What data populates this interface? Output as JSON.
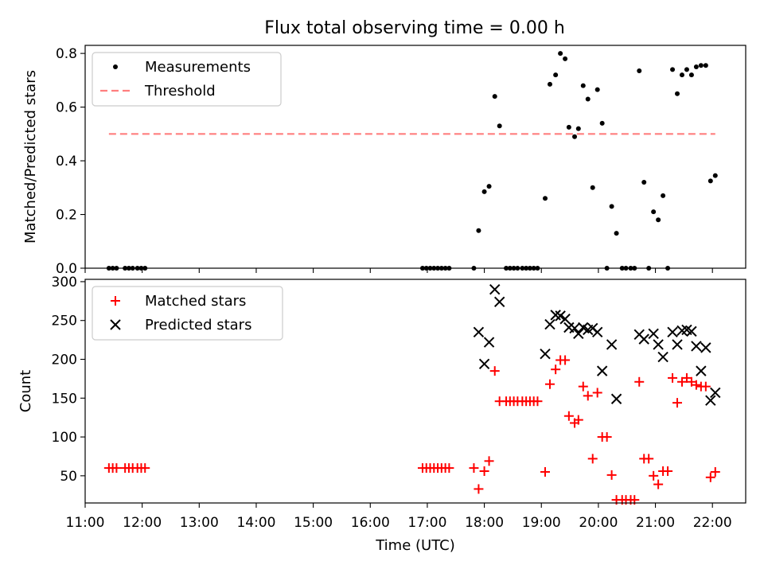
{
  "figure": {
    "title": "Flux total observing time = 0.00 h"
  },
  "chart_data": [
    {
      "type": "scatter",
      "xlabel": "",
      "ylabel": "Matched/Predicted stars",
      "xlim": [
        "11:00",
        "22:35"
      ],
      "ylim": [
        0,
        0.83
      ],
      "yticks": [
        "0.0",
        "0.2",
        "0.4",
        "0.6",
        "0.8"
      ],
      "ytick_values": [
        0,
        0.2,
        0.4,
        0.6,
        0.8
      ],
      "grid": false,
      "legend": "top-left",
      "series": [
        {
          "name": "Measurements",
          "marker": "dot",
          "color": "#000000",
          "points": [
            [
              "11:25",
              0
            ],
            [
              "11:29",
              0
            ],
            [
              "11:33",
              0
            ],
            [
              "11:42",
              0
            ],
            [
              "11:46",
              0
            ],
            [
              "11:50",
              0
            ],
            [
              "11:55",
              0
            ],
            [
              "11:59",
              0
            ],
            [
              "12:03",
              0
            ],
            [
              "16:55",
              0
            ],
            [
              "16:59",
              0
            ],
            [
              "17:03",
              0
            ],
            [
              "17:07",
              0
            ],
            [
              "17:11",
              0
            ],
            [
              "17:15",
              0
            ],
            [
              "17:19",
              0
            ],
            [
              "17:23",
              0
            ],
            [
              "17:49",
              0
            ],
            [
              "17:54",
              0.14
            ],
            [
              "18:00",
              0.285
            ],
            [
              "18:05",
              0.305
            ],
            [
              "18:11",
              0.64
            ],
            [
              "18:16",
              0.53
            ],
            [
              "18:23",
              0
            ],
            [
              "18:27",
              0
            ],
            [
              "18:31",
              0
            ],
            [
              "18:35",
              0
            ],
            [
              "18:40",
              0
            ],
            [
              "18:44",
              0
            ],
            [
              "18:48",
              0
            ],
            [
              "18:52",
              0
            ],
            [
              "18:56",
              0
            ],
            [
              "19:04",
              0.26
            ],
            [
              "19:09",
              0.685
            ],
            [
              "19:15",
              0.72
            ],
            [
              "19:20",
              0.8
            ],
            [
              "19:25",
              0.78
            ],
            [
              "19:29",
              0.525
            ],
            [
              "19:35",
              0.49
            ],
            [
              "19:39",
              0.52
            ],
            [
              "19:44",
              0.68
            ],
            [
              "19:49",
              0.63
            ],
            [
              "19:54",
              0.3
            ],
            [
              "19:59",
              0.665
            ],
            [
              "20:04",
              0.54
            ],
            [
              "20:09",
              0
            ],
            [
              "20:14",
              0.23
            ],
            [
              "20:19",
              0.13
            ],
            [
              "20:25",
              0
            ],
            [
              "20:29",
              0
            ],
            [
              "20:34",
              0
            ],
            [
              "20:38",
              0
            ],
            [
              "20:43",
              0.735
            ],
            [
              "20:48",
              0.32
            ],
            [
              "20:53",
              0
            ],
            [
              "20:58",
              0.21
            ],
            [
              "21:03",
              0.18
            ],
            [
              "21:08",
              0.27
            ],
            [
              "21:13",
              0
            ],
            [
              "21:18",
              0.74
            ],
            [
              "21:23",
              0.65
            ],
            [
              "21:28",
              0.72
            ],
            [
              "21:33",
              0.74
            ],
            [
              "21:38",
              0.72
            ],
            [
              "21:43",
              0.75
            ],
            [
              "21:48",
              0.755
            ],
            [
              "21:53",
              0.755
            ],
            [
              "21:58",
              0.325
            ],
            [
              "22:03",
              0.345
            ]
          ]
        },
        {
          "name": "Threshold",
          "line": "dashed",
          "color": "#ff7f7f",
          "points": [
            [
              "11:25",
              0.5
            ],
            [
              "22:03",
              0.5
            ]
          ]
        }
      ]
    },
    {
      "type": "scatter",
      "xlabel": "Time (UTC)",
      "ylabel": "Count",
      "xlim": [
        "11:00",
        "22:35"
      ],
      "ylim": [
        15,
        303
      ],
      "yticks": [
        "50",
        "100",
        "150",
        "200",
        "250",
        "300"
      ],
      "ytick_values": [
        50,
        100,
        150,
        200,
        250,
        300
      ],
      "xticks": [
        "11:00",
        "12:00",
        "13:00",
        "14:00",
        "15:00",
        "16:00",
        "17:00",
        "18:00",
        "19:00",
        "20:00",
        "21:00",
        "22:00"
      ],
      "grid": false,
      "legend": "top-left",
      "series": [
        {
          "name": "Matched stars",
          "marker": "plus",
          "color": "#ff0000",
          "points": [
            [
              "11:25",
              60
            ],
            [
              "11:29",
              60
            ],
            [
              "11:33",
              60
            ],
            [
              "11:42",
              60
            ],
            [
              "11:46",
              60
            ],
            [
              "11:50",
              60
            ],
            [
              "11:55",
              60
            ],
            [
              "11:59",
              60
            ],
            [
              "12:03",
              60
            ],
            [
              "16:55",
              60
            ],
            [
              "16:59",
              60
            ],
            [
              "17:03",
              60
            ],
            [
              "17:07",
              60
            ],
            [
              "17:11",
              60
            ],
            [
              "17:15",
              60
            ],
            [
              "17:19",
              60
            ],
            [
              "17:23",
              60
            ],
            [
              "17:49",
              60
            ],
            [
              "17:54",
              33
            ],
            [
              "18:00",
              56
            ],
            [
              "18:05",
              69
            ],
            [
              "18:11",
              185
            ],
            [
              "18:16",
              146
            ],
            [
              "18:23",
              146
            ],
            [
              "18:27",
              146
            ],
            [
              "18:31",
              146
            ],
            [
              "18:35",
              146
            ],
            [
              "18:40",
              146
            ],
            [
              "18:44",
              146
            ],
            [
              "18:48",
              146
            ],
            [
              "18:52",
              146
            ],
            [
              "18:56",
              146
            ],
            [
              "19:04",
              55
            ],
            [
              "19:09",
              168
            ],
            [
              "19:15",
              187
            ],
            [
              "19:20",
              199
            ],
            [
              "19:25",
              199
            ],
            [
              "19:29",
              127
            ],
            [
              "19:35",
              118
            ],
            [
              "19:39",
              122
            ],
            [
              "19:44",
              165
            ],
            [
              "19:49",
              153
            ],
            [
              "19:54",
              72
            ],
            [
              "19:59",
              157
            ],
            [
              "20:04",
              100
            ],
            [
              "20:09",
              100
            ],
            [
              "20:14",
              51
            ],
            [
              "20:19",
              19
            ],
            [
              "20:25",
              19
            ],
            [
              "20:29",
              19
            ],
            [
              "20:34",
              19
            ],
            [
              "20:38",
              19
            ],
            [
              "20:43",
              171
            ],
            [
              "20:48",
              72
            ],
            [
              "20:53",
              72
            ],
            [
              "20:58",
              50
            ],
            [
              "21:03",
              39
            ],
            [
              "21:08",
              56
            ],
            [
              "21:13",
              56
            ],
            [
              "21:18",
              176
            ],
            [
              "21:23",
              144
            ],
            [
              "21:28",
              171
            ],
            [
              "21:33",
              176
            ],
            [
              "21:38",
              171
            ],
            [
              "21:43",
              167
            ],
            [
              "21:48",
              165
            ],
            [
              "21:53",
              165
            ],
            [
              "21:58",
              48
            ],
            [
              "22:03",
              55
            ]
          ]
        },
        {
          "name": "Predicted stars",
          "marker": "x",
          "color": "#000000",
          "points": [
            [
              "17:54",
              235
            ],
            [
              "18:00",
              194
            ],
            [
              "18:05",
              222
            ],
            [
              "18:11",
              290
            ],
            [
              "18:16",
              274
            ],
            [
              "19:04",
              207
            ],
            [
              "19:09",
              245
            ],
            [
              "19:15",
              257
            ],
            [
              "19:20",
              256
            ],
            [
              "19:25",
              252
            ],
            [
              "19:29",
              241
            ],
            [
              "19:35",
              240
            ],
            [
              "19:39",
              233
            ],
            [
              "19:44",
              241
            ],
            [
              "19:49",
              238
            ],
            [
              "19:54",
              240
            ],
            [
              "19:59",
              235
            ],
            [
              "20:04",
              185
            ],
            [
              "20:14",
              219
            ],
            [
              "20:19",
              149
            ],
            [
              "20:43",
              232
            ],
            [
              "20:48",
              226
            ],
            [
              "20:58",
              233
            ],
            [
              "21:03",
              219
            ],
            [
              "21:08",
              203
            ],
            [
              "21:18",
              235
            ],
            [
              "21:23",
              219
            ],
            [
              "21:28",
              237
            ],
            [
              "21:33",
              238
            ],
            [
              "21:38",
              236
            ],
            [
              "21:43",
              217
            ],
            [
              "21:48",
              185
            ],
            [
              "21:53",
              215
            ],
            [
              "21:58",
              147
            ],
            [
              "22:03",
              157
            ]
          ]
        }
      ]
    }
  ]
}
